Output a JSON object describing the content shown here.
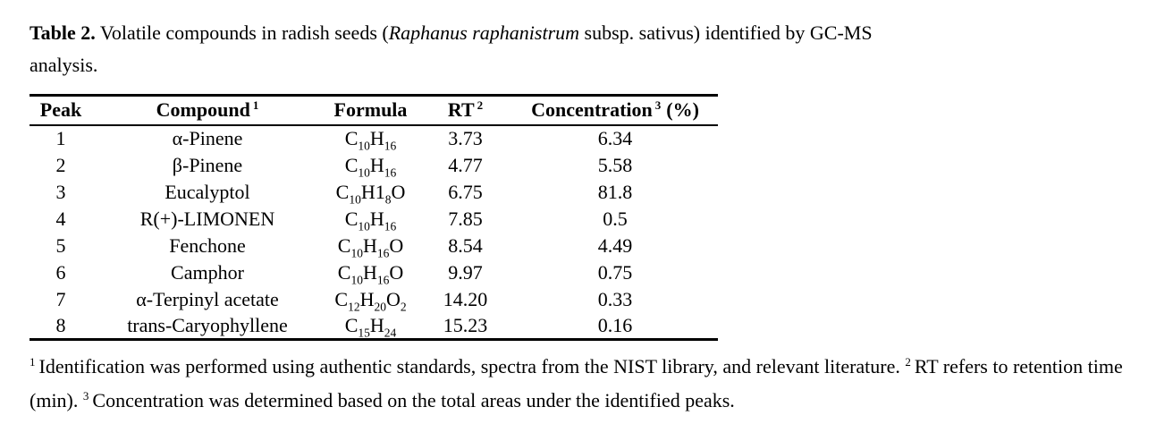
{
  "page": {
    "background": "#ffffff",
    "text_color": "#000000"
  },
  "caption": {
    "label": "Table 2.",
    "before_italic": " Volatile compounds in radish seeds (",
    "italic": "Raphanus raphanistrum",
    "after_italic": " subsp. sativus) identified by GC-MS",
    "line2": "analysis."
  },
  "table": {
    "headers": [
      {
        "label": "Peak",
        "sup": "",
        "suffix": ""
      },
      {
        "label": "Compound",
        "sup": "1",
        "suffix": ""
      },
      {
        "label": "Formula",
        "sup": "",
        "suffix": ""
      },
      {
        "label": "RT",
        "sup": "2",
        "suffix": ""
      },
      {
        "label": "Concentration",
        "sup": "3",
        "suffix": "(%)"
      }
    ],
    "rows": [
      {
        "peak": "1",
        "compound": "α-Pinene",
        "formula": "C_{10}H_{16}",
        "rt": "3.73",
        "concentration": "6.34"
      },
      {
        "peak": "2",
        "compound": "β-Pinene",
        "formula": "C_{10}H_{16}",
        "rt": "4.77",
        "concentration": "5.58"
      },
      {
        "peak": "3",
        "compound": "Eucalyptol",
        "formula": "C_{10}H1_{8}O",
        "rt": "6.75",
        "concentration": "81.8"
      },
      {
        "peak": "4",
        "compound": "R(+)-LIMONEN",
        "formula": "C_{10}H_{16}",
        "rt": "7.85",
        "concentration": "0.5"
      },
      {
        "peak": "5",
        "compound": "Fenchone",
        "formula": "C_{10}H_{16}O",
        "rt": "8.54",
        "concentration": "4.49"
      },
      {
        "peak": "6",
        "compound": "Camphor",
        "formula": "C_{10}H_{16}O",
        "rt": "9.97",
        "concentration": "0.75"
      },
      {
        "peak": "7",
        "compound": "α-Terpinyl acetate",
        "formula": "C_{12}H_{20}O_{2}",
        "rt": "14.20",
        "concentration": "0.33"
      },
      {
        "peak": "8",
        "compound": "trans-Caryophyllene",
        "formula": "C_{15}H_{24}",
        "rt": "15.23",
        "concentration": "0.16"
      }
    ]
  },
  "footnotes": [
    {
      "sup": "1",
      "text": "Identification was performed using authentic standards, spectra from the NIST library, and relevant literature."
    },
    {
      "sup": "2",
      "text": "RT refers to retention time (min)."
    },
    {
      "sup": "3",
      "text": "Concentration was determined based on the total areas under the identified peaks."
    }
  ]
}
